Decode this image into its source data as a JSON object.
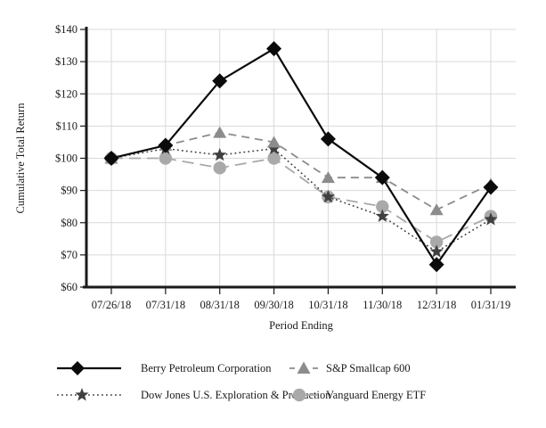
{
  "chart_data": {
    "type": "line",
    "title": "",
    "xlabel": "Period Ending",
    "ylabel": "Cumulative Total Return",
    "categories": [
      "07/26/18",
      "07/31/18",
      "08/31/18",
      "09/30/18",
      "10/31/18",
      "11/30/18",
      "12/31/18",
      "01/31/19"
    ],
    "ylim": [
      60,
      140
    ],
    "y_ticks": [
      {
        "value": 140,
        "label": "$140"
      },
      {
        "value": 130,
        "label": "$130"
      },
      {
        "value": 120,
        "label": "$120"
      },
      {
        "value": 110,
        "label": "$110"
      },
      {
        "value": 100,
        "label": "$100"
      },
      {
        "value": 90,
        "label": "$90"
      },
      {
        "value": 80,
        "label": "$80"
      },
      {
        "value": 70,
        "label": "$70"
      },
      {
        "value": 60,
        "label": "$60"
      }
    ],
    "grid": true,
    "legend_position": "below-chart-two-columns",
    "colors": {
      "grid": "#d9d9d9",
      "axis": "#1a1a1a",
      "text": "#1a1a1a"
    },
    "series": [
      {
        "name": "Berry Petroleum Corporation",
        "marker": "diamond",
        "line_style": "solid",
        "color": "#0b0b0b",
        "values": [
          100,
          104,
          124,
          134,
          106,
          94,
          67,
          91
        ]
      },
      {
        "name": "S&P Smallcap 600",
        "marker": "triangle",
        "line_style": "dashed",
        "color": "#8c8c8c",
        "values": [
          100,
          104,
          108,
          105,
          94,
          94,
          84,
          92
        ]
      },
      {
        "name": "Dow Jones U.S. Exploration & Production",
        "marker": "star",
        "line_style": "dotted",
        "color": "#3f3f3f",
        "values": [
          100,
          103,
          101,
          103,
          88,
          82,
          71,
          81
        ]
      },
      {
        "name": "Vanguard Energy ETF",
        "marker": "circle",
        "line_style": "long-dash",
        "color": "#a9a9a9",
        "values": [
          100,
          100,
          97,
          100,
          88,
          85,
          74,
          82
        ]
      }
    ]
  }
}
